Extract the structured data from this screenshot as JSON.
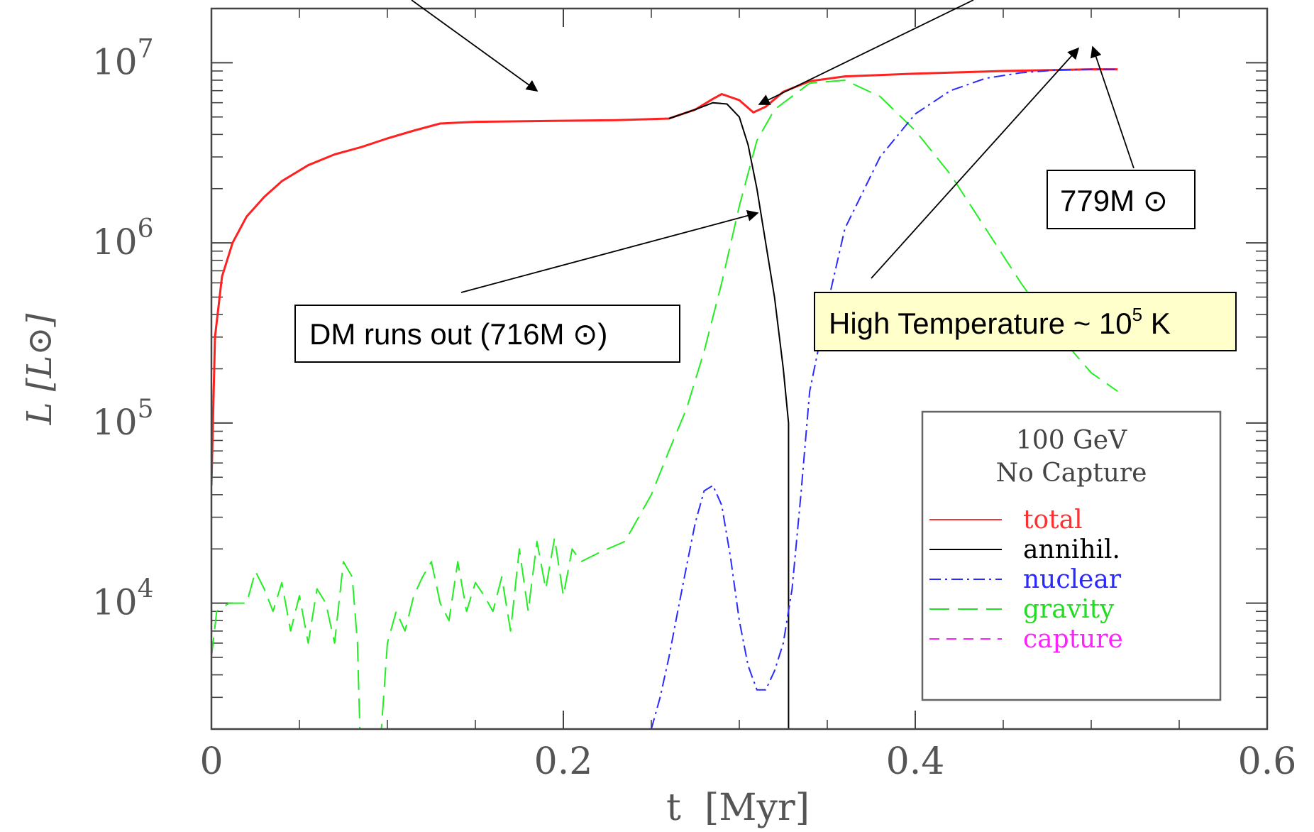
{
  "chart_data": {
    "type": "line",
    "xlabel": "t  [Myr]",
    "ylabel": "L [L⊙]",
    "xlim": [
      0,
      0.6
    ],
    "ylim": [
      2000,
      20000000
    ],
    "y_scale": "log",
    "x_ticks": [
      {
        "value": 0,
        "label": "0"
      },
      {
        "value": 0.2,
        "label": "0.2"
      },
      {
        "value": 0.4,
        "label": "0.4"
      },
      {
        "value": 0.6,
        "label": "0.6"
      }
    ],
    "y_ticks": [
      {
        "value": 10000,
        "base": "10",
        "exp": "4"
      },
      {
        "value": 100000,
        "base": "10",
        "exp": "5"
      },
      {
        "value": 1000000,
        "base": "10",
        "exp": "6"
      },
      {
        "value": 10000000,
        "base": "10",
        "exp": "7"
      }
    ],
    "legend": {
      "placement": "bottom-right",
      "title_lines": [
        "100 GeV",
        "No Capture"
      ],
      "entries": [
        {
          "label": "total",
          "color": "#ff3030",
          "dash": "solid"
        },
        {
          "label": "annihil.",
          "color": "#000000",
          "dash": "solid"
        },
        {
          "label": "nuclear",
          "color": "#2a2aff",
          "dash": "dashdot"
        },
        {
          "label": "gravity",
          "color": "#22dd22",
          "dash": "longdash"
        },
        {
          "label": "capture",
          "color": "#ff22ff",
          "dash": "dash"
        }
      ]
    },
    "series": [
      {
        "name": "total",
        "color": "#ff2020",
        "dash": "solid",
        "width": 3,
        "points": [
          [
            0,
            45000
          ],
          [
            0.002,
            300000
          ],
          [
            0.006,
            650000
          ],
          [
            0.012,
            1000000
          ],
          [
            0.02,
            1400000
          ],
          [
            0.03,
            1800000
          ],
          [
            0.04,
            2200000
          ],
          [
            0.055,
            2700000
          ],
          [
            0.07,
            3100000
          ],
          [
            0.085,
            3400000
          ],
          [
            0.1,
            3800000
          ],
          [
            0.115,
            4200000
          ],
          [
            0.13,
            4600000
          ],
          [
            0.15,
            4700000
          ],
          [
            0.19,
            4750000
          ],
          [
            0.23,
            4800000
          ],
          [
            0.26,
            4900000
          ],
          [
            0.275,
            5500000
          ],
          [
            0.285,
            6300000
          ],
          [
            0.29,
            6700000
          ],
          [
            0.3,
            6200000
          ],
          [
            0.308,
            5300000
          ],
          [
            0.315,
            5700000
          ],
          [
            0.325,
            6900000
          ],
          [
            0.34,
            7900000
          ],
          [
            0.36,
            8400000
          ],
          [
            0.4,
            8700000
          ],
          [
            0.45,
            9000000
          ],
          [
            0.5,
            9200000
          ],
          [
            0.515,
            9200000
          ]
        ]
      },
      {
        "name": "annihil.",
        "color": "#000000",
        "dash": "solid",
        "width": 2,
        "points": [
          [
            0.26,
            4900000
          ],
          [
            0.275,
            5500000
          ],
          [
            0.285,
            6000000
          ],
          [
            0.293,
            5900000
          ],
          [
            0.3,
            5000000
          ],
          [
            0.305,
            3500000
          ],
          [
            0.31,
            2000000
          ],
          [
            0.315,
            1000000
          ],
          [
            0.32,
            500000
          ],
          [
            0.325,
            200000
          ],
          [
            0.328,
            100000
          ],
          [
            0.328,
            2000
          ]
        ]
      },
      {
        "name": "gravity",
        "color": "#22ee22",
        "dash": "longdash",
        "width": 2,
        "points": [
          [
            0,
            5000
          ],
          [
            0.003,
            9000
          ],
          [
            0.01,
            10000
          ],
          [
            0.02,
            10000
          ],
          [
            0.025,
            15000
          ],
          [
            0.03,
            12000
          ],
          [
            0.035,
            9000
          ],
          [
            0.04,
            13000
          ],
          [
            0.045,
            7000
          ],
          [
            0.05,
            11000
          ],
          [
            0.055,
            6000
          ],
          [
            0.06,
            12000
          ],
          [
            0.065,
            10000
          ],
          [
            0.07,
            6000
          ],
          [
            0.075,
            17000
          ],
          [
            0.08,
            14000
          ],
          [
            0.083,
            6000
          ],
          [
            0.085,
            1200
          ],
          [
            0.095,
            1200
          ],
          [
            0.1,
            6000
          ],
          [
            0.105,
            9000
          ],
          [
            0.11,
            7000
          ],
          [
            0.115,
            11000
          ],
          [
            0.12,
            14000
          ],
          [
            0.125,
            17000
          ],
          [
            0.13,
            10000
          ],
          [
            0.135,
            8000
          ],
          [
            0.14,
            17000
          ],
          [
            0.145,
            9000
          ],
          [
            0.15,
            13000
          ],
          [
            0.155,
            11000
          ],
          [
            0.16,
            9000
          ],
          [
            0.165,
            14000
          ],
          [
            0.17,
            7000
          ],
          [
            0.175,
            20000
          ],
          [
            0.18,
            9000
          ],
          [
            0.185,
            22000
          ],
          [
            0.19,
            12000
          ],
          [
            0.195,
            23000
          ],
          [
            0.2,
            11000
          ],
          [
            0.205,
            20000
          ],
          [
            0.21,
            17000
          ],
          [
            0.22,
            19000
          ],
          [
            0.235,
            22000
          ],
          [
            0.25,
            40000
          ],
          [
            0.26,
            70000
          ],
          [
            0.27,
            120000
          ],
          [
            0.28,
            250000
          ],
          [
            0.29,
            600000
          ],
          [
            0.3,
            1600000
          ],
          [
            0.31,
            3700000
          ],
          [
            0.32,
            5500000
          ],
          [
            0.34,
            7700000
          ],
          [
            0.36,
            8000000
          ],
          [
            0.38,
            6500000
          ],
          [
            0.4,
            4200000
          ],
          [
            0.42,
            2400000
          ],
          [
            0.44,
            1200000
          ],
          [
            0.46,
            600000
          ],
          [
            0.48,
            320000
          ],
          [
            0.5,
            190000
          ],
          [
            0.515,
            150000
          ]
        ]
      },
      {
        "name": "nuclear",
        "color": "#2a2aff",
        "dash": "dashdot",
        "width": 2,
        "points": [
          [
            0.25,
            2000
          ],
          [
            0.255,
            3000
          ],
          [
            0.26,
            5000
          ],
          [
            0.265,
            9000
          ],
          [
            0.27,
            16000
          ],
          [
            0.275,
            28000
          ],
          [
            0.28,
            42000
          ],
          [
            0.285,
            45000
          ],
          [
            0.29,
            35000
          ],
          [
            0.295,
            18000
          ],
          [
            0.3,
            8000
          ],
          [
            0.305,
            4500
          ],
          [
            0.31,
            3300
          ],
          [
            0.315,
            3300
          ],
          [
            0.32,
            4200
          ],
          [
            0.325,
            6000
          ],
          [
            0.33,
            12000
          ],
          [
            0.335,
            40000
          ],
          [
            0.34,
            150000
          ],
          [
            0.35,
            450000
          ],
          [
            0.36,
            1200000
          ],
          [
            0.38,
            3000000
          ],
          [
            0.4,
            5200000
          ],
          [
            0.42,
            7000000
          ],
          [
            0.44,
            8200000
          ],
          [
            0.46,
            8800000
          ],
          [
            0.48,
            9100000
          ],
          [
            0.5,
            9200000
          ],
          [
            0.515,
            9200000
          ]
        ]
      }
    ],
    "annotations": [
      {
        "text": "DM runs out (716M ⊙)",
        "style": "box"
      },
      {
        "text": "779M ⊙",
        "style": "box"
      },
      {
        "text_main": "High Temperature ~ 10",
        "text_exp": "5",
        "text_tail": " K",
        "style": "highlight-box"
      }
    ],
    "grid": false,
    "minor_ticks": true
  }
}
